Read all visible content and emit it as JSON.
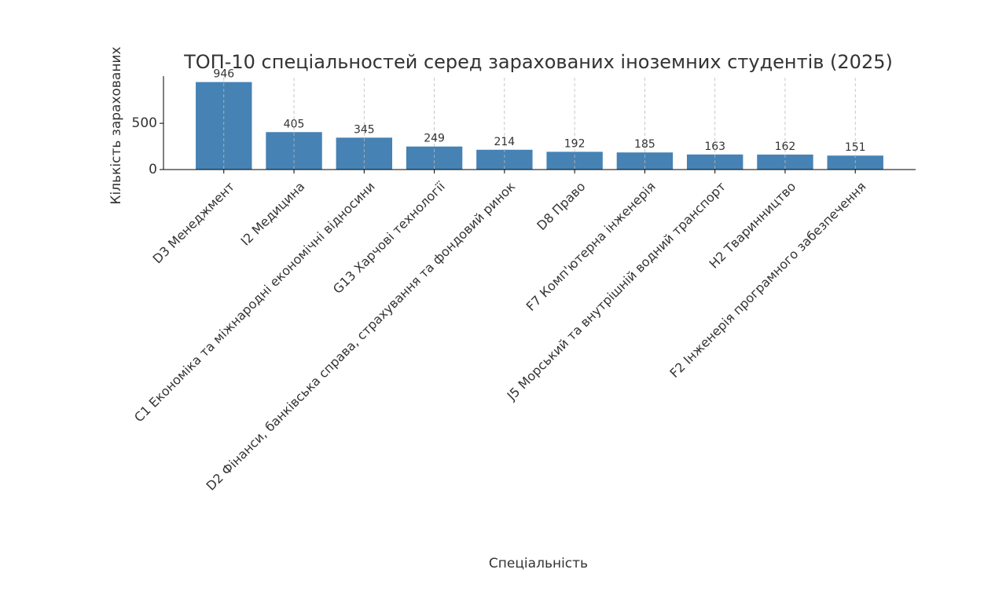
{
  "chart_data": {
    "type": "bar",
    "title": "ТОП-10 спеціальностей серед зарахованих іноземних студентів (2025)",
    "x_label": "Спеціальність",
    "y_label": "Кількість зарахованих",
    "categories": [
      "D3 Менеджмент",
      "I2 Медицина",
      "C1 Економіка та міжнародні економічні відносини",
      "G13 Харчові технології",
      "D2 Фінанси, банківська справа, страхування та фондовий ринок",
      "D8 Право",
      "F7 Комп'ютерна інженерія",
      "J5 Морський та внутрішній водний транспорт",
      "H2 Тваринництво",
      "F2 Інженерія програмного забезпечення"
    ],
    "values": [
      946,
      405,
      345,
      249,
      214,
      192,
      185,
      163,
      162,
      151
    ],
    "color": "#4682b4",
    "ylim": [
      0,
      993
    ],
    "yticks": [
      0,
      500
    ],
    "grid": "x"
  }
}
